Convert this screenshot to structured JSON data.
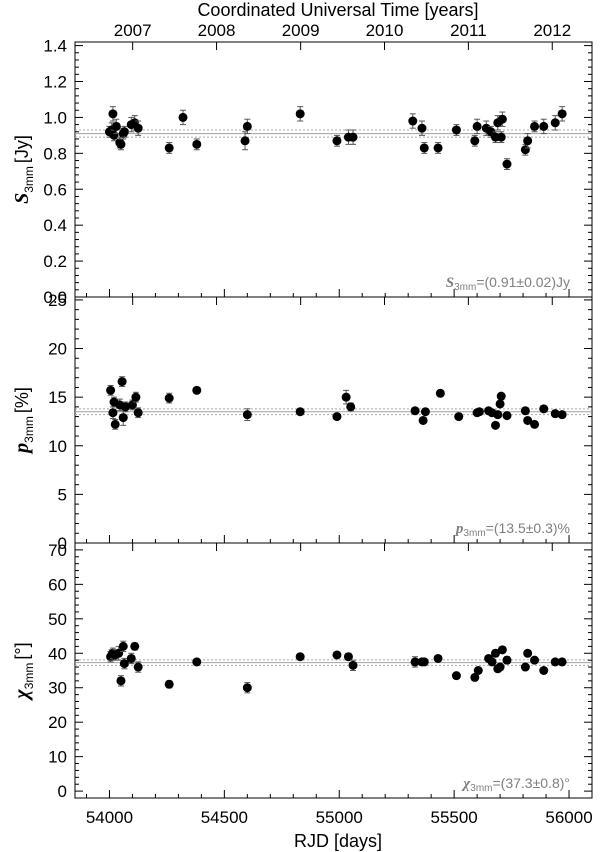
{
  "chart_data": {
    "type": "scatter",
    "top_axis": {
      "label": "Coordinated Universal Time [years]",
      "years": [
        "2007",
        "2008",
        "2009",
        "2010",
        "2011",
        "2012"
      ],
      "year_rjd": [
        54101,
        54466,
        54832,
        55197,
        55562,
        55927
      ]
    },
    "x_axis": {
      "label": "RJD [days]",
      "xlim": [
        53850,
        56100
      ],
      "ticks": [
        54000,
        54500,
        55000,
        55500,
        56000
      ],
      "tick_labels": [
        "54000",
        "54500",
        "55000",
        "55500",
        "56000"
      ]
    },
    "panels": [
      {
        "name": "flux",
        "ylabel_symbol": "S",
        "ylabel_sub": "3mm",
        "ylabel_unit": "[Jy]",
        "ylim": [
          0.0,
          1.42
        ],
        "yticks": [
          0.0,
          0.2,
          0.4,
          0.6,
          0.8,
          1.0,
          1.2,
          1.4
        ],
        "ytick_labels": [
          "0.0",
          "0.2",
          "0.4",
          "0.6",
          "0.8",
          "1.0",
          "1.2",
          "1.4"
        ],
        "mean": 0.91,
        "mean_err": 0.02,
        "summary_symbol": "S",
        "summary_sub": "3mm",
        "summary_text": "=(0.91±0.02)Jy",
        "points": [
          {
            "x": 54000,
            "y": 0.92,
            "err": 0.03
          },
          {
            "x": 54010,
            "y": 0.93,
            "err": 0.04
          },
          {
            "x": 54015,
            "y": 1.02,
            "err": 0.04
          },
          {
            "x": 54020,
            "y": 0.9,
            "err": 0.03
          },
          {
            "x": 54030,
            "y": 0.95,
            "err": 0.04
          },
          {
            "x": 54045,
            "y": 0.86,
            "err": 0.03
          },
          {
            "x": 54050,
            "y": 0.85,
            "err": 0.03
          },
          {
            "x": 54060,
            "y": 0.91,
            "err": 0.03
          },
          {
            "x": 54065,
            "y": 0.92,
            "err": 0.03
          },
          {
            "x": 54095,
            "y": 0.96,
            "err": 0.04
          },
          {
            "x": 54110,
            "y": 0.97,
            "err": 0.04
          },
          {
            "x": 54125,
            "y": 0.94,
            "err": 0.04
          },
          {
            "x": 54260,
            "y": 0.83,
            "err": 0.03
          },
          {
            "x": 54320,
            "y": 1.0,
            "err": 0.04
          },
          {
            "x": 54380,
            "y": 0.85,
            "err": 0.03
          },
          {
            "x": 54590,
            "y": 0.87,
            "err": 0.05
          },
          {
            "x": 54600,
            "y": 0.95,
            "err": 0.04
          },
          {
            "x": 54830,
            "y": 1.02,
            "err": 0.04
          },
          {
            "x": 54990,
            "y": 0.87,
            "err": 0.03
          },
          {
            "x": 55040,
            "y": 0.89,
            "err": 0.04
          },
          {
            "x": 55060,
            "y": 0.89,
            "err": 0.04
          },
          {
            "x": 55320,
            "y": 0.98,
            "err": 0.04
          },
          {
            "x": 55360,
            "y": 0.94,
            "err": 0.04
          },
          {
            "x": 55370,
            "y": 0.83,
            "err": 0.03
          },
          {
            "x": 55430,
            "y": 0.83,
            "err": 0.03
          },
          {
            "x": 55510,
            "y": 0.93,
            "err": 0.03
          },
          {
            "x": 55590,
            "y": 0.87,
            "err": 0.03
          },
          {
            "x": 55600,
            "y": 0.95,
            "err": 0.04
          },
          {
            "x": 55640,
            "y": 0.94,
            "err": 0.04
          },
          {
            "x": 55660,
            "y": 0.92,
            "err": 0.03
          },
          {
            "x": 55680,
            "y": 0.89,
            "err": 0.03
          },
          {
            "x": 55690,
            "y": 0.97,
            "err": 0.04
          },
          {
            "x": 55705,
            "y": 0.89,
            "err": 0.03
          },
          {
            "x": 55710,
            "y": 0.99,
            "err": 0.04
          },
          {
            "x": 55730,
            "y": 0.74,
            "err": 0.03
          },
          {
            "x": 55810,
            "y": 0.82,
            "err": 0.03
          },
          {
            "x": 55820,
            "y": 0.87,
            "err": 0.04
          },
          {
            "x": 55850,
            "y": 0.95,
            "err": 0.03
          },
          {
            "x": 55890,
            "y": 0.95,
            "err": 0.04
          },
          {
            "x": 55940,
            "y": 0.97,
            "err": 0.04
          },
          {
            "x": 55970,
            "y": 1.02,
            "err": 0.04
          }
        ]
      },
      {
        "name": "polarization-degree",
        "ylabel_symbol": "p",
        "ylabel_sub": "3mm",
        "ylabel_unit": "[%]",
        "ylim": [
          0,
          25.3
        ],
        "yticks": [
          0,
          5,
          10,
          15,
          20,
          25
        ],
        "ytick_labels": [
          "0",
          "5",
          "10",
          "15",
          "20",
          "25"
        ],
        "mean": 13.5,
        "mean_err": 0.3,
        "summary_symbol": "p",
        "summary_sub": "3mm",
        "summary_text": "=(13.5±0.3)%",
        "points": [
          {
            "x": 54005,
            "y": 15.7,
            "err": 0.5
          },
          {
            "x": 54015,
            "y": 13.4,
            "err": 0.6
          },
          {
            "x": 54020,
            "y": 14.5,
            "err": 0.5
          },
          {
            "x": 54025,
            "y": 12.2,
            "err": 0.5
          },
          {
            "x": 54045,
            "y": 14.2,
            "err": 0.6
          },
          {
            "x": 54055,
            "y": 16.6,
            "err": 0.5
          },
          {
            "x": 54060,
            "y": 12.9,
            "err": 0.8
          },
          {
            "x": 54070,
            "y": 14.0,
            "err": 0.5
          },
          {
            "x": 54100,
            "y": 14.2,
            "err": 0.5
          },
          {
            "x": 54115,
            "y": 15.0,
            "err": 0.5
          },
          {
            "x": 54125,
            "y": 13.4,
            "err": 0.5
          },
          {
            "x": 54260,
            "y": 14.9,
            "err": 0.5
          },
          {
            "x": 54380,
            "y": 15.7,
            "err": 0.3
          },
          {
            "x": 54600,
            "y": 13.2,
            "err": 0.6
          },
          {
            "x": 54830,
            "y": 13.5,
            "err": 0.3
          },
          {
            "x": 54990,
            "y": 13.0,
            "err": 0.3
          },
          {
            "x": 55030,
            "y": 15.0,
            "err": 0.7
          },
          {
            "x": 55050,
            "y": 14.0,
            "err": 0.4
          },
          {
            "x": 55330,
            "y": 13.6,
            "err": 0.3
          },
          {
            "x": 55365,
            "y": 12.6,
            "err": 0.3
          },
          {
            "x": 55375,
            "y": 13.5,
            "err": 0.3
          },
          {
            "x": 55440,
            "y": 15.4,
            "err": 0.3
          },
          {
            "x": 55520,
            "y": 13.0,
            "err": 0.3
          },
          {
            "x": 55600,
            "y": 13.4,
            "err": 0.3
          },
          {
            "x": 55610,
            "y": 13.5,
            "err": 0.3
          },
          {
            "x": 55650,
            "y": 13.6,
            "err": 0.3
          },
          {
            "x": 55665,
            "y": 13.4,
            "err": 0.3
          },
          {
            "x": 55680,
            "y": 12.1,
            "err": 0.3
          },
          {
            "x": 55690,
            "y": 13.2,
            "err": 0.3
          },
          {
            "x": 55700,
            "y": 14.3,
            "err": 0.3
          },
          {
            "x": 55705,
            "y": 15.1,
            "err": 0.3
          },
          {
            "x": 55730,
            "y": 13.1,
            "err": 0.3
          },
          {
            "x": 55810,
            "y": 13.6,
            "err": 0.3
          },
          {
            "x": 55820,
            "y": 12.6,
            "err": 0.3
          },
          {
            "x": 55850,
            "y": 12.2,
            "err": 0.3
          },
          {
            "x": 55890,
            "y": 13.8,
            "err": 0.3
          },
          {
            "x": 55940,
            "y": 13.3,
            "err": 0.3
          },
          {
            "x": 55970,
            "y": 13.2,
            "err": 0.3
          }
        ]
      },
      {
        "name": "polarization-angle",
        "ylabel_symbol": "χ",
        "ylabel_sub": "3mm",
        "ylabel_unit": "[°]",
        "ylim": [
          -2,
          72
        ],
        "yticks": [
          0,
          10,
          20,
          30,
          40,
          50,
          60,
          70
        ],
        "ytick_labels": [
          "0",
          "10",
          "20",
          "30",
          "40",
          "50",
          "60",
          "70"
        ],
        "mean": 37.3,
        "mean_err": 0.8,
        "summary_symbol": "χ",
        "summary_sub": "3mm",
        "summary_text": "=(37.3±0.8)°",
        "points": [
          {
            "x": 54005,
            "y": 39.0,
            "err": 1.5
          },
          {
            "x": 54010,
            "y": 39.5,
            "err": 1.5
          },
          {
            "x": 54015,
            "y": 40.0,
            "err": 1.5
          },
          {
            "x": 54025,
            "y": 39.5,
            "err": 1.5
          },
          {
            "x": 54040,
            "y": 40.0,
            "err": 2.0
          },
          {
            "x": 54050,
            "y": 32.0,
            "err": 1.5
          },
          {
            "x": 54060,
            "y": 42.0,
            "err": 1.5
          },
          {
            "x": 54065,
            "y": 37.0,
            "err": 1.5
          },
          {
            "x": 54095,
            "y": 38.5,
            "err": 1.5
          },
          {
            "x": 54110,
            "y": 42.0,
            "err": 1.0
          },
          {
            "x": 54125,
            "y": 36.0,
            "err": 1.5
          },
          {
            "x": 54260,
            "y": 31.0,
            "err": 1.0
          },
          {
            "x": 54380,
            "y": 37.5,
            "err": 0.8
          },
          {
            "x": 54600,
            "y": 30.0,
            "err": 1.5
          },
          {
            "x": 54830,
            "y": 39.0,
            "err": 0.8
          },
          {
            "x": 54990,
            "y": 39.5,
            "err": 0.8
          },
          {
            "x": 55040,
            "y": 39.0,
            "err": 1.0
          },
          {
            "x": 55060,
            "y": 36.5,
            "err": 1.5
          },
          {
            "x": 55330,
            "y": 37.5,
            "err": 1.5
          },
          {
            "x": 55360,
            "y": 37.5,
            "err": 0.8
          },
          {
            "x": 55370,
            "y": 37.5,
            "err": 0.8
          },
          {
            "x": 55430,
            "y": 38.5,
            "err": 0.8
          },
          {
            "x": 55510,
            "y": 33.5,
            "err": 0.8
          },
          {
            "x": 55590,
            "y": 33.0,
            "err": 0.8
          },
          {
            "x": 55605,
            "y": 35.0,
            "err": 0.8
          },
          {
            "x": 55650,
            "y": 38.5,
            "err": 0.8
          },
          {
            "x": 55665,
            "y": 37.5,
            "err": 0.8
          },
          {
            "x": 55680,
            "y": 40.0,
            "err": 1.0
          },
          {
            "x": 55690,
            "y": 35.5,
            "err": 0.8
          },
          {
            "x": 55700,
            "y": 36.0,
            "err": 0.8
          },
          {
            "x": 55710,
            "y": 41.0,
            "err": 0.8
          },
          {
            "x": 55730,
            "y": 38.0,
            "err": 1.0
          },
          {
            "x": 55810,
            "y": 36.0,
            "err": 0.8
          },
          {
            "x": 55820,
            "y": 40.0,
            "err": 0.8
          },
          {
            "x": 55850,
            "y": 38.0,
            "err": 0.8
          },
          {
            "x": 55890,
            "y": 35.0,
            "err": 0.8
          },
          {
            "x": 55940,
            "y": 37.5,
            "err": 0.8
          },
          {
            "x": 55970,
            "y": 37.5,
            "err": 0.8
          }
        ]
      }
    ]
  }
}
